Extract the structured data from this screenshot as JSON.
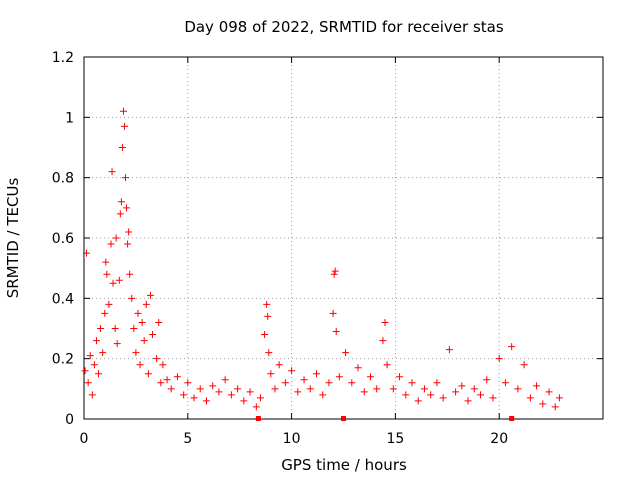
{
  "chart_data": {
    "type": "scatter",
    "title": "Day 098 of 2022, SRMTID for receiver stas",
    "xlabel": "GPS time / hours",
    "ylabel": "SRMTID / TECUs",
    "xlim": [
      0,
      25
    ],
    "ylim": [
      0,
      1.2
    ],
    "x_ticks": [
      "0",
      "5",
      "10",
      "15",
      "20"
    ],
    "y_ticks": [
      "0",
      "0.2",
      "0.4",
      "0.6",
      "0.8",
      "1",
      "1.2"
    ],
    "grid": true,
    "marker": "plus",
    "color": "#ff0000",
    "gap_markers_x": [
      8.4,
      12.5,
      20.6
    ],
    "series": [
      {
        "name": "stas",
        "points": [
          [
            0.05,
            0.16
          ],
          [
            0.12,
            0.55
          ],
          [
            0.2,
            0.12
          ],
          [
            0.3,
            0.21
          ],
          [
            0.4,
            0.08
          ],
          [
            0.5,
            0.18
          ],
          [
            0.6,
            0.26
          ],
          [
            0.7,
            0.15
          ],
          [
            0.8,
            0.3
          ],
          [
            0.9,
            0.22
          ],
          [
            1.0,
            0.35
          ],
          [
            1.05,
            0.52
          ],
          [
            1.1,
            0.48
          ],
          [
            1.2,
            0.38
          ],
          [
            1.3,
            0.58
          ],
          [
            1.35,
            0.82
          ],
          [
            1.4,
            0.45
          ],
          [
            1.5,
            0.3
          ],
          [
            1.55,
            0.6
          ],
          [
            1.6,
            0.25
          ],
          [
            1.7,
            0.46
          ],
          [
            1.75,
            0.68
          ],
          [
            1.8,
            0.72
          ],
          [
            1.85,
            0.9
          ],
          [
            1.9,
            1.02
          ],
          [
            1.95,
            0.97
          ],
          [
            2.0,
            0.8
          ],
          [
            2.05,
            0.7
          ],
          [
            2.1,
            0.58
          ],
          [
            2.15,
            0.62
          ],
          [
            2.2,
            0.48
          ],
          [
            2.3,
            0.4
          ],
          [
            2.4,
            0.3
          ],
          [
            2.5,
            0.22
          ],
          [
            2.6,
            0.35
          ],
          [
            2.7,
            0.18
          ],
          [
            2.8,
            0.32
          ],
          [
            2.9,
            0.26
          ],
          [
            3.0,
            0.38
          ],
          [
            3.1,
            0.15
          ],
          [
            3.2,
            0.41
          ],
          [
            3.3,
            0.28
          ],
          [
            3.5,
            0.2
          ],
          [
            3.6,
            0.32
          ],
          [
            3.7,
            0.12
          ],
          [
            3.8,
            0.18
          ],
          [
            4.0,
            0.13
          ],
          [
            4.2,
            0.1
          ],
          [
            4.5,
            0.14
          ],
          [
            4.8,
            0.08
          ],
          [
            5.0,
            0.12
          ],
          [
            5.3,
            0.07
          ],
          [
            5.6,
            0.1
          ],
          [
            5.9,
            0.06
          ],
          [
            6.2,
            0.11
          ],
          [
            6.5,
            0.09
          ],
          [
            6.8,
            0.13
          ],
          [
            7.1,
            0.08
          ],
          [
            7.4,
            0.1
          ],
          [
            7.7,
            0.06
          ],
          [
            8.0,
            0.09
          ],
          [
            8.3,
            0.04
          ],
          [
            8.5,
            0.07
          ],
          [
            8.7,
            0.28
          ],
          [
            8.8,
            0.38
          ],
          [
            8.85,
            0.34
          ],
          [
            8.9,
            0.22
          ],
          [
            9.0,
            0.15
          ],
          [
            9.2,
            0.1
          ],
          [
            9.4,
            0.18
          ],
          [
            9.7,
            0.12
          ],
          [
            10.0,
            0.16
          ],
          [
            10.3,
            0.09
          ],
          [
            10.6,
            0.13
          ],
          [
            10.9,
            0.1
          ],
          [
            11.2,
            0.15
          ],
          [
            11.5,
            0.08
          ],
          [
            11.8,
            0.12
          ],
          [
            12.0,
            0.35
          ],
          [
            12.05,
            0.48
          ],
          [
            12.1,
            0.49
          ],
          [
            12.15,
            0.29
          ],
          [
            12.3,
            0.14
          ],
          [
            12.6,
            0.22
          ],
          [
            12.9,
            0.12
          ],
          [
            13.2,
            0.17
          ],
          [
            13.5,
            0.09
          ],
          [
            13.8,
            0.14
          ],
          [
            14.1,
            0.1
          ],
          [
            14.4,
            0.26
          ],
          [
            14.5,
            0.32
          ],
          [
            14.6,
            0.18
          ],
          [
            14.9,
            0.1
          ],
          [
            15.2,
            0.14
          ],
          [
            15.5,
            0.08
          ],
          [
            15.8,
            0.12
          ],
          [
            16.1,
            0.06
          ],
          [
            16.4,
            0.1
          ],
          [
            16.7,
            0.08
          ],
          [
            17.0,
            0.12
          ],
          [
            17.3,
            0.07
          ],
          [
            17.6,
            0.23
          ],
          [
            17.9,
            0.09
          ],
          [
            18.2,
            0.11
          ],
          [
            18.5,
            0.06
          ],
          [
            18.8,
            0.1
          ],
          [
            19.1,
            0.08
          ],
          [
            19.4,
            0.13
          ],
          [
            19.7,
            0.07
          ],
          [
            20.0,
            0.2
          ],
          [
            20.3,
            0.12
          ],
          [
            20.6,
            0.24
          ],
          [
            20.9,
            0.1
          ],
          [
            21.2,
            0.18
          ],
          [
            21.5,
            0.07
          ],
          [
            21.8,
            0.11
          ],
          [
            22.1,
            0.05
          ],
          [
            22.4,
            0.09
          ],
          [
            22.7,
            0.04
          ],
          [
            22.9,
            0.07
          ]
        ]
      }
    ]
  }
}
